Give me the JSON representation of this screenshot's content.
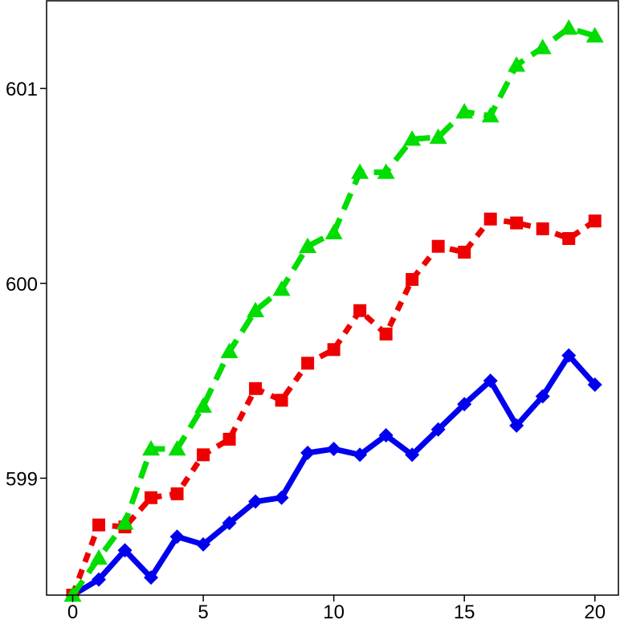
{
  "chart_data": {
    "type": "line",
    "title": "",
    "xlabel": "",
    "ylabel": "",
    "xlim": [
      -1,
      20.9
    ],
    "ylim": [
      598.4,
      601.45
    ],
    "grid": false,
    "legend": "none",
    "x_ticks": [
      0,
      5,
      10,
      15,
      20
    ],
    "y_ticks": [
      599,
      600,
      601
    ],
    "x": [
      0,
      1,
      2,
      3,
      4,
      5,
      6,
      7,
      8,
      9,
      10,
      11,
      12,
      13,
      14,
      15,
      16,
      17,
      18,
      19,
      20
    ],
    "series": [
      {
        "color": "#0000ee",
        "marker": "diamond",
        "line_style": "solid",
        "values": [
          598.4,
          598.48,
          598.63,
          598.49,
          598.7,
          598.66,
          598.77,
          598.88,
          598.9,
          599.13,
          599.15,
          599.12,
          599.22,
          599.12,
          599.25,
          599.38,
          599.5,
          599.27,
          599.42,
          599.63,
          599.48
        ]
      },
      {
        "color": "#ee0000",
        "marker": "square",
        "line_style": "dotted",
        "values": [
          598.4,
          598.76,
          598.75,
          598.9,
          598.92,
          599.12,
          599.2,
          599.46,
          599.4,
          599.59,
          599.66,
          599.86,
          599.74,
          600.02,
          600.19,
          600.16,
          600.33,
          600.31,
          600.28,
          600.23,
          600.32
        ]
      },
      {
        "color": "#00dd00",
        "marker": "triangle",
        "line_style": "dashed",
        "values": [
          598.4,
          598.59,
          598.77,
          599.15,
          599.15,
          599.37,
          599.65,
          599.86,
          599.97,
          600.19,
          600.26,
          600.57,
          600.57,
          600.74,
          600.75,
          600.88,
          600.86,
          601.12,
          601.21,
          601.31,
          601.27
        ]
      }
    ]
  }
}
